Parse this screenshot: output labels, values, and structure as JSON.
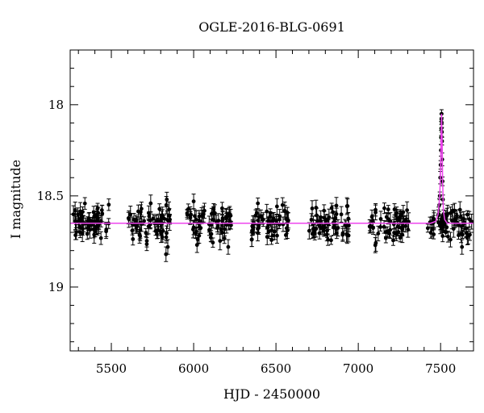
{
  "chart_data": {
    "type": "scatter",
    "title": "OGLE-2016-BLG-0691",
    "xlabel": "HJD - 2450000",
    "ylabel": "I magnitude",
    "xlim": [
      5250,
      7700
    ],
    "ylim": [
      19.35,
      17.7
    ],
    "y_inverted": true,
    "xticks": [
      5500,
      6000,
      6500,
      7000,
      7500
    ],
    "xtick_labels": [
      "5500",
      "6000",
      "6500",
      "7000",
      "7500"
    ],
    "yticks": [
      18,
      18.5,
      19
    ],
    "ytick_labels": [
      "18",
      "18.5",
      "19"
    ],
    "grid": false,
    "colors": {
      "data": "#000000",
      "model": "#ee44ee"
    },
    "baseline_mag": 18.65,
    "peak": {
      "hjd": 7506,
      "mag": 18.05
    },
    "model": {
      "name": "",
      "x": [
        5250,
        7440,
        7470,
        7485,
        7495,
        7500,
        7503,
        7506,
        7509,
        7512,
        7517,
        7525,
        7540,
        7700
      ],
      "y": [
        18.65,
        18.65,
        18.64,
        18.6,
        18.5,
        18.35,
        18.18,
        18.05,
        18.18,
        18.4,
        18.58,
        18.63,
        18.65,
        18.65
      ]
    },
    "observation_seasons": [
      {
        "start": 5260,
        "end": 5490,
        "count": 60
      },
      {
        "start": 5600,
        "end": 5860,
        "count": 60
      },
      {
        "start": 5960,
        "end": 6230,
        "count": 60
      },
      {
        "start": 6350,
        "end": 6580,
        "count": 55
      },
      {
        "start": 6700,
        "end": 6950,
        "count": 55
      },
      {
        "start": 7060,
        "end": 7310,
        "count": 55
      },
      {
        "start": 7410,
        "end": 7690,
        "count": 60
      }
    ],
    "event_points": {
      "x": [
        7488,
        7492,
        7495,
        7498,
        7500,
        7502,
        7503,
        7504,
        7505,
        7506,
        7507,
        7508,
        7509,
        7510,
        7512,
        7514,
        7518,
        7522
      ],
      "y": [
        18.6,
        18.55,
        18.5,
        18.4,
        18.33,
        18.25,
        18.18,
        18.13,
        18.08,
        18.05,
        18.1,
        18.15,
        18.2,
        18.3,
        18.42,
        18.52,
        18.6,
        18.63
      ]
    },
    "outlier_points": {
      "x": [
        5837,
        5843,
        5832,
        6540,
        6210,
        7630,
        7560,
        6000
      ],
      "y": [
        18.52,
        18.78,
        18.82,
        18.55,
        18.78,
        18.78,
        18.74,
        18.53
      ]
    },
    "scatter_sigma": 0.045,
    "error_bar_sigma": 0.035
  }
}
